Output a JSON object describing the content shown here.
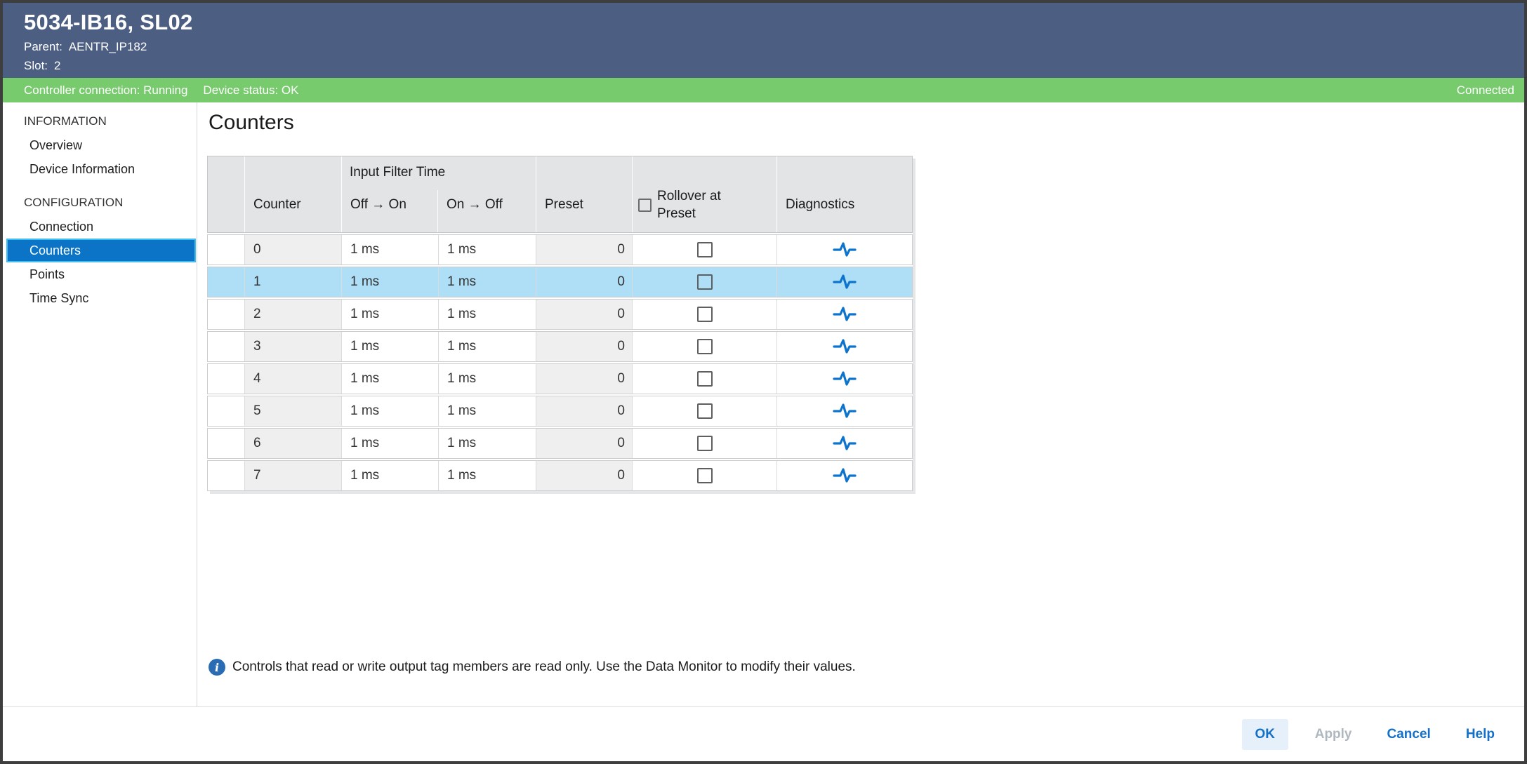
{
  "window": {
    "title": "5034-IB16, SL02",
    "parent_label": "Parent:",
    "parent_value": "AENTR_IP182",
    "slot_label": "Slot:",
    "slot_value": "2"
  },
  "status_bar": {
    "controller_connection": "Controller connection: Running",
    "device_status": "Device status: OK",
    "connection_state": "Connected"
  },
  "sidebar": {
    "sections": [
      {
        "header": "INFORMATION",
        "items": [
          {
            "label": "Overview",
            "selected": false
          },
          {
            "label": "Device Information",
            "selected": false
          }
        ]
      },
      {
        "header": "CONFIGURATION",
        "items": [
          {
            "label": "Connection",
            "selected": false
          },
          {
            "label": "Counters",
            "selected": true
          },
          {
            "label": "Points",
            "selected": false
          },
          {
            "label": "Time Sync",
            "selected": false
          }
        ]
      }
    ]
  },
  "main": {
    "heading": "Counters",
    "table": {
      "group_header": "Input Filter Time",
      "columns": [
        "",
        "Counter",
        "Off → On",
        "On → Off",
        "Preset",
        "Rollover at Preset",
        "Diagnostics"
      ],
      "rollover_header_checkbox_checked": false,
      "diagnostics_icon": "pulse-waveform-icon",
      "rows": [
        {
          "counter": "0",
          "off_on": "1 ms",
          "on_off": "1 ms",
          "preset": "0",
          "rollover_checked": false,
          "selected": false
        },
        {
          "counter": "1",
          "off_on": "1 ms",
          "on_off": "1 ms",
          "preset": "0",
          "rollover_checked": false,
          "selected": true
        },
        {
          "counter": "2",
          "off_on": "1 ms",
          "on_off": "1 ms",
          "preset": "0",
          "rollover_checked": false,
          "selected": false
        },
        {
          "counter": "3",
          "off_on": "1 ms",
          "on_off": "1 ms",
          "preset": "0",
          "rollover_checked": false,
          "selected": false
        },
        {
          "counter": "4",
          "off_on": "1 ms",
          "on_off": "1 ms",
          "preset": "0",
          "rollover_checked": false,
          "selected": false
        },
        {
          "counter": "5",
          "off_on": "1 ms",
          "on_off": "1 ms",
          "preset": "0",
          "rollover_checked": false,
          "selected": false
        },
        {
          "counter": "6",
          "off_on": "1 ms",
          "on_off": "1 ms",
          "preset": "0",
          "rollover_checked": false,
          "selected": false
        },
        {
          "counter": "7",
          "off_on": "1 ms",
          "on_off": "1 ms",
          "preset": "0",
          "rollover_checked": false,
          "selected": false
        }
      ]
    },
    "note": "Controls that read or write output tag members are read only. Use the Data Monitor to modify their values."
  },
  "footer": {
    "buttons": [
      {
        "label": "OK",
        "state": "primary"
      },
      {
        "label": "Apply",
        "state": "disabled"
      },
      {
        "label": "Cancel",
        "state": "enabled"
      },
      {
        "label": "Help",
        "state": "enabled"
      }
    ]
  },
  "colors": {
    "titlebar_bg": "#4C5E82",
    "status_bg": "#77CB6D",
    "nav_selected_bg": "#0B74C7",
    "nav_selected_border": "#41BEEE",
    "row_selected_bg": "#AEDFF7",
    "cell_shaded_bg": "#EFEFEF",
    "header_bg": "#E2E4E6",
    "accent_blue": "#1470C8",
    "diagnostics_icon_color": "#0D74CE",
    "info_icon_bg": "#2A6CB3",
    "disabled_text": "#AFB7BF",
    "ok_button_bg": "#E5F0FA"
  }
}
